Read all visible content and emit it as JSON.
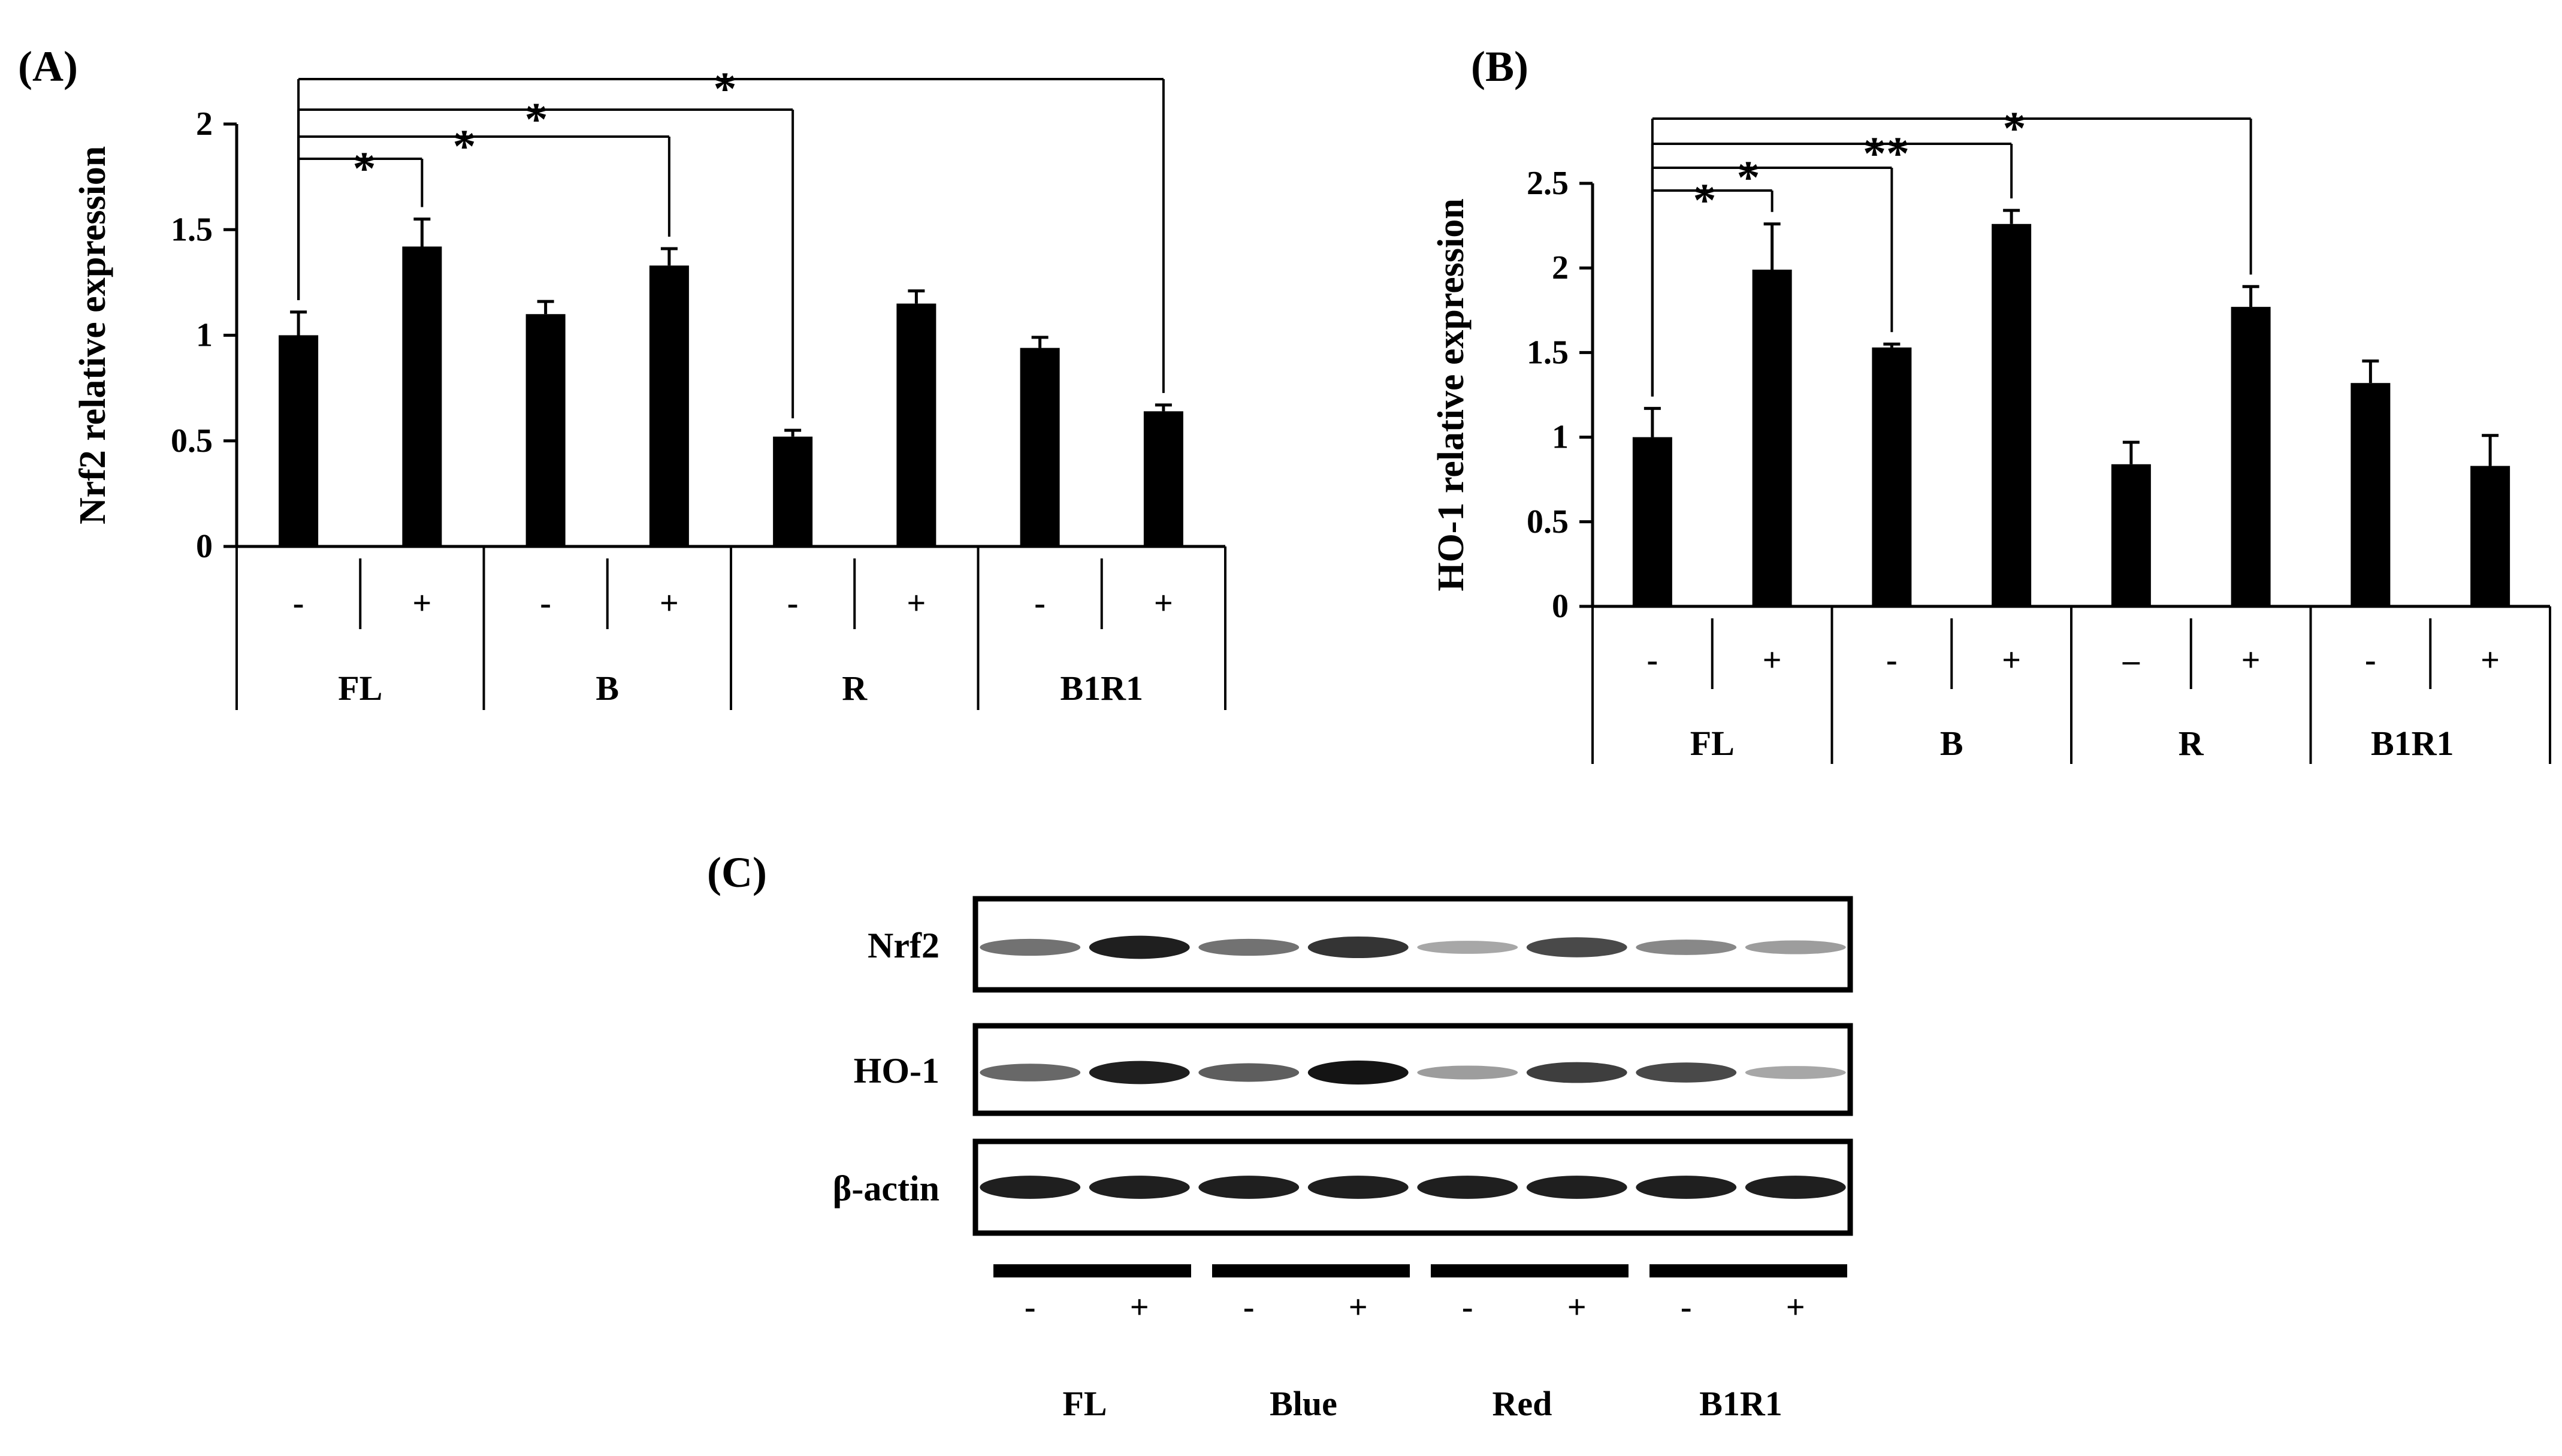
{
  "panels": {
    "A": {
      "label": "(A)"
    },
    "B": {
      "label": "(B)"
    },
    "C": {
      "label": "(C)"
    }
  },
  "chart_data": [
    {
      "type": "bar",
      "panel": "(A)",
      "ylabel": "Nrf2 relative expression",
      "ylim": [
        0,
        2
      ],
      "yticks": [
        "0",
        "0.5",
        "1",
        "1.5",
        "2"
      ],
      "groups": [
        "FL",
        "B",
        "R",
        "B1R1"
      ],
      "treatments": [
        "-",
        "+"
      ],
      "categories": [
        "-",
        "+",
        "-",
        "+",
        "-",
        "+",
        "-",
        "+"
      ],
      "values": [
        1.0,
        1.42,
        1.1,
        1.33,
        0.52,
        1.15,
        0.94,
        0.64
      ],
      "errors": [
        0.11,
        0.13,
        0.06,
        0.08,
        0.03,
        0.06,
        0.05,
        0.03
      ],
      "significance": [
        {
          "from": 0,
          "to": 1,
          "label": "*"
        },
        {
          "from": 0,
          "to": 3,
          "label": "*"
        },
        {
          "from": 0,
          "to": 4,
          "label": "*"
        },
        {
          "from": 0,
          "to": 7,
          "label": "*"
        }
      ],
      "grid": false,
      "legend": "none"
    },
    {
      "type": "bar",
      "panel": "(B)",
      "ylabel": "HO-1 relative expression",
      "ylim": [
        0,
        2.5
      ],
      "yticks": [
        "0",
        "0.5",
        "1",
        "1.5",
        "2",
        "2.5"
      ],
      "groups": [
        "FL",
        "B",
        "R",
        "B1R1"
      ],
      "treatments": [
        "-",
        "+",
        "-",
        "+",
        "–",
        "+",
        "-",
        "+"
      ],
      "categories": [
        "-",
        "+",
        "-",
        "+",
        "–",
        "+",
        "-",
        "+"
      ],
      "values": [
        1.0,
        1.99,
        1.53,
        2.26,
        0.84,
        1.77,
        1.32,
        0.83
      ],
      "errors": [
        0.17,
        0.27,
        0.02,
        0.08,
        0.13,
        0.12,
        0.13,
        0.18
      ],
      "significance": [
        {
          "from": 0,
          "to": 1,
          "label": "*"
        },
        {
          "from": 0,
          "to": 2,
          "label": "*"
        },
        {
          "from": 0,
          "to": 3,
          "label": "**"
        },
        {
          "from": 0,
          "to": 5,
          "label": "*"
        }
      ],
      "grid": false,
      "legend": "none"
    }
  ],
  "blot": {
    "rows": [
      "Nrf2",
      "HO-1",
      "β-actin"
    ],
    "treatments": [
      "-",
      "+",
      "-",
      "+",
      "-",
      "+",
      "-",
      "+"
    ],
    "groups": [
      "FL",
      "Blue",
      "Red",
      "B1R1"
    ],
    "band_intensity": {
      "Nrf2": [
        0.55,
        0.95,
        0.55,
        0.85,
        0.3,
        0.75,
        0.45,
        0.35
      ],
      "HO-1": [
        0.6,
        0.95,
        0.65,
        1.0,
        0.35,
        0.8,
        0.75,
        0.3
      ],
      "β-actin": [
        0.95,
        0.95,
        0.95,
        0.95,
        0.95,
        0.95,
        0.95,
        0.95
      ]
    }
  }
}
